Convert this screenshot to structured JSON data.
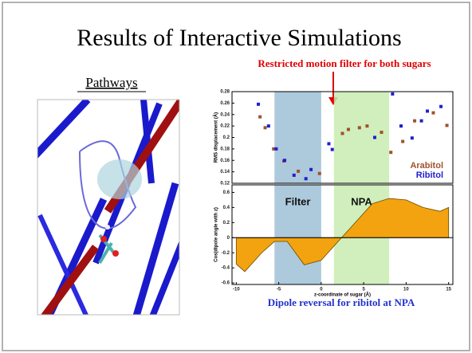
{
  "title": "Results of Interactive Simulations",
  "pathways_label": "Pathways",
  "top_annotation": "Restricted motion filter for both sugars",
  "bottom_caption": "Dipole reversal for ribitol at NPA",
  "chart_data": [
    {
      "type": "scatter",
      "y_label": "RMS displacement (Å)",
      "xlim": [
        -10.5,
        15.5
      ],
      "ylim": [
        0.12,
        0.28
      ],
      "yticks": [
        0.12,
        0.14,
        0.16,
        0.18,
        0.2,
        0.22,
        0.24,
        0.26,
        0.28
      ],
      "bands": [
        {
          "range": [
            -5.5,
            0
          ],
          "color": "#9fbfd6"
        },
        {
          "range": [
            1.5,
            8
          ],
          "color": "#c8ecb0"
        }
      ],
      "series": [
        {
          "name": "Arabitol",
          "color": "#a0522d",
          "x": [
            -7.2,
            -6.6,
            -5.6,
            -4.4,
            -2.7,
            -0.2,
            2.5,
            3.2,
            4.5,
            5.4,
            7.1,
            8.2,
            9.6,
            11.0,
            13.2,
            14.8
          ],
          "values": [
            0.236,
            0.217,
            0.18,
            0.159,
            0.141,
            0.137,
            0.207,
            0.214,
            0.217,
            0.22,
            0.209,
            0.174,
            0.193,
            0.229,
            0.243,
            0.221
          ]
        },
        {
          "name": "Ribitol",
          "color": "#1f1fd0",
          "x": [
            -7.4,
            -6.2,
            -5.3,
            -4.3,
            -3.2,
            -1.8,
            -1.2,
            0.9,
            1.3,
            6.3,
            8.4,
            9.4,
            10.7,
            11.8,
            12.5,
            14.1
          ],
          "values": [
            0.258,
            0.22,
            0.18,
            0.16,
            0.134,
            0.128,
            0.144,
            0.189,
            0.179,
            0.2,
            0.276,
            0.22,
            0.199,
            0.229,
            0.246,
            0.254
          ]
        }
      ]
    },
    {
      "type": "area",
      "x_label": "z-coordinate of sugar (Å)",
      "y_label": "Cos(dipole angle with z)",
      "xlim": [
        -10.5,
        15.5
      ],
      "ylim": [
        -0.62,
        0.7
      ],
      "xticks": [
        -10,
        -5,
        0,
        5,
        10,
        15
      ],
      "yticks": [
        -0.6,
        -0.4,
        -0.2,
        0,
        0.2,
        0.4,
        0.6
      ],
      "color": "#f2a30f",
      "bands": [
        {
          "label": "Filter",
          "range": [
            -5.5,
            0
          ],
          "color": "#9fbfd6"
        },
        {
          "label": "NPA",
          "range": [
            1.5,
            8
          ],
          "color": "#c8ecb0"
        }
      ],
      "x": [
        -10,
        -9,
        -7,
        -5.5,
        -4,
        -2,
        0,
        2,
        4,
        6,
        8,
        10,
        12,
        14,
        15
      ],
      "values": [
        -0.35,
        -0.45,
        -0.2,
        -0.05,
        -0.05,
        -0.36,
        -0.3,
        -0.05,
        0.2,
        0.45,
        0.52,
        0.5,
        0.4,
        0.35,
        0.4
      ]
    }
  ]
}
